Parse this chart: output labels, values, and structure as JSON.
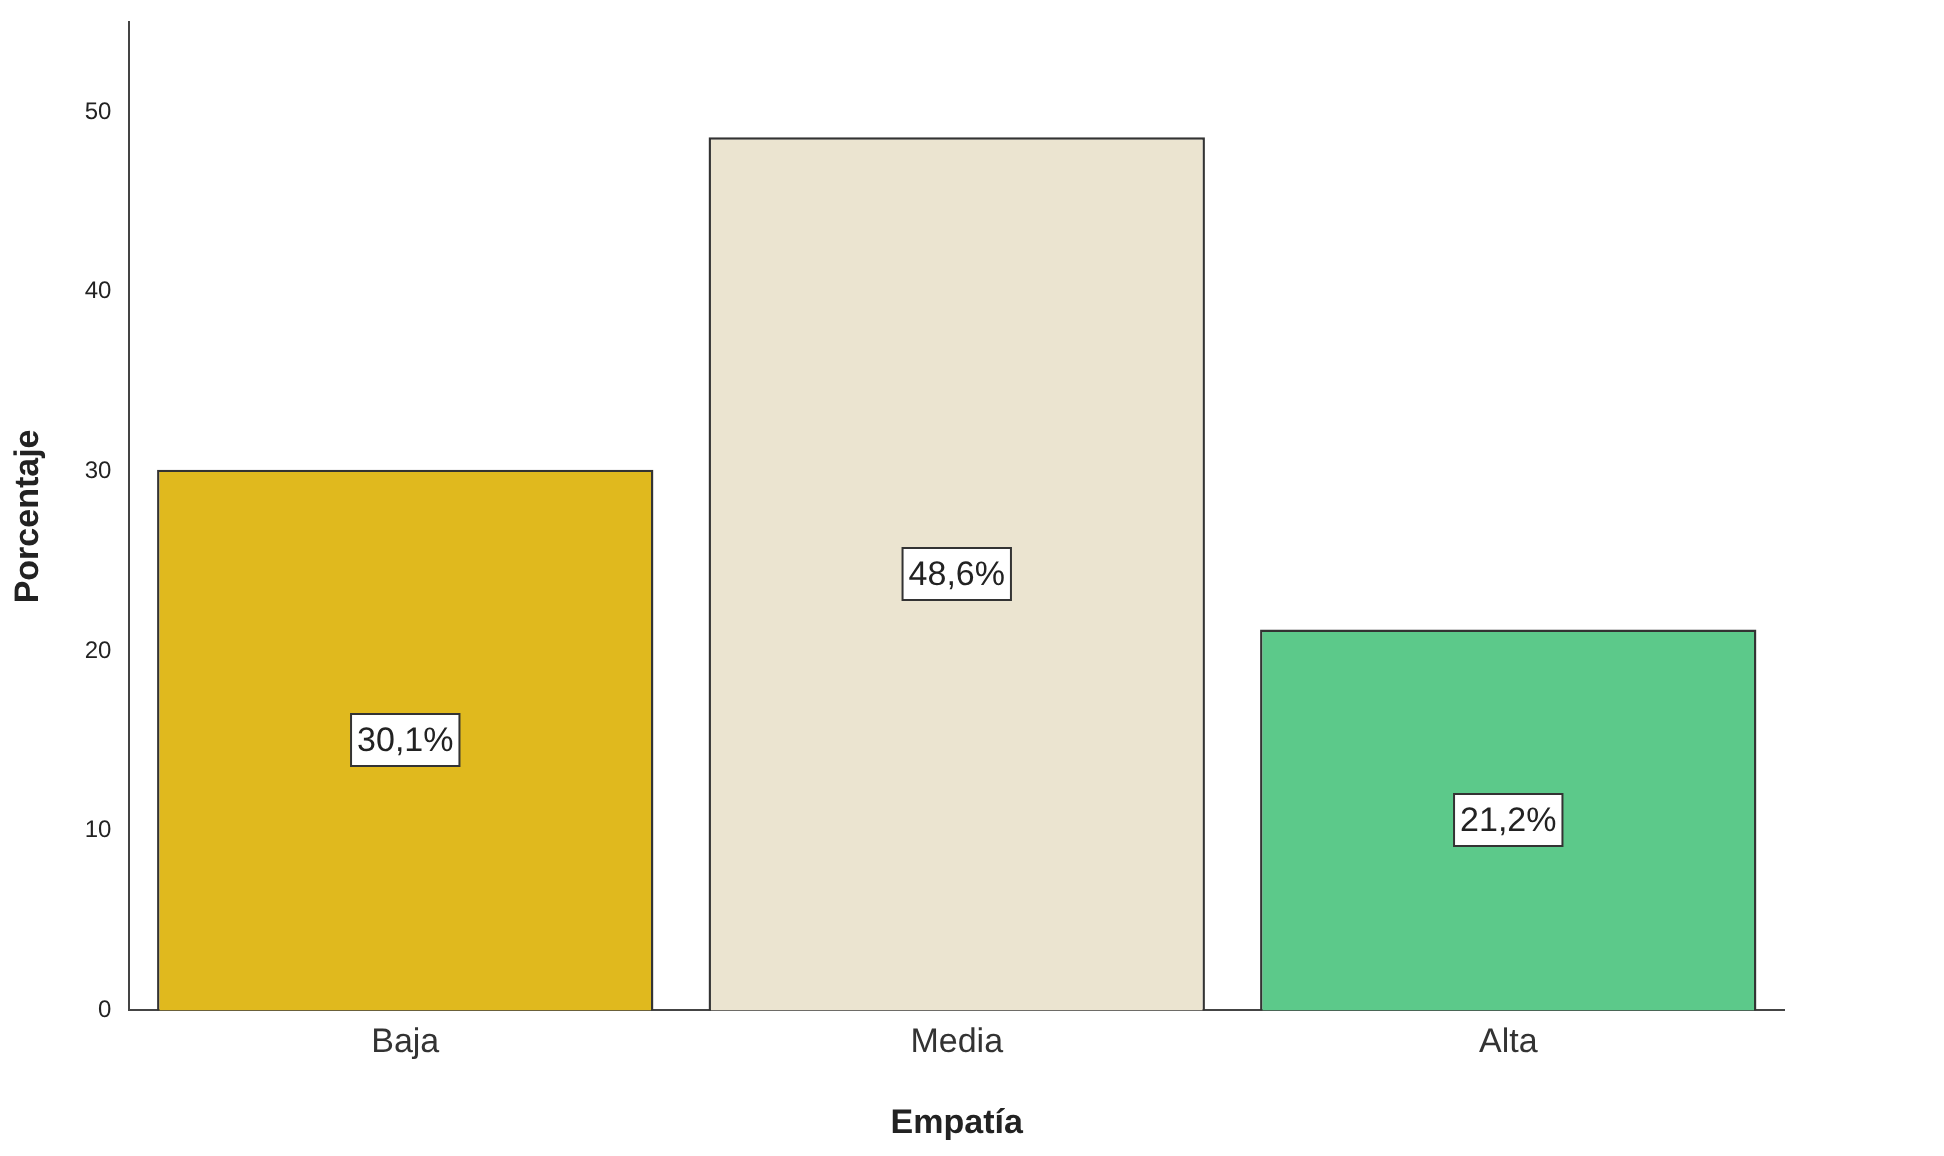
{
  "chart_data": {
    "type": "bar",
    "xlabel": "Empatía",
    "ylabel": "Porcentaje",
    "categories": [
      "Baja",
      "Media",
      "Alta"
    ],
    "values": [
      30.1,
      48.6,
      21.2
    ],
    "colors": [
      "#e0b91e",
      "#ebe4d0",
      "#5cc98a"
    ],
    "value_labels": [
      "30,1%",
      "48,6%",
      "21,2%"
    ],
    "ylim": [
      0,
      55
    ],
    "yticks": [
      0,
      10,
      20,
      30,
      40,
      50
    ],
    "grid": false,
    "legend": false
  }
}
